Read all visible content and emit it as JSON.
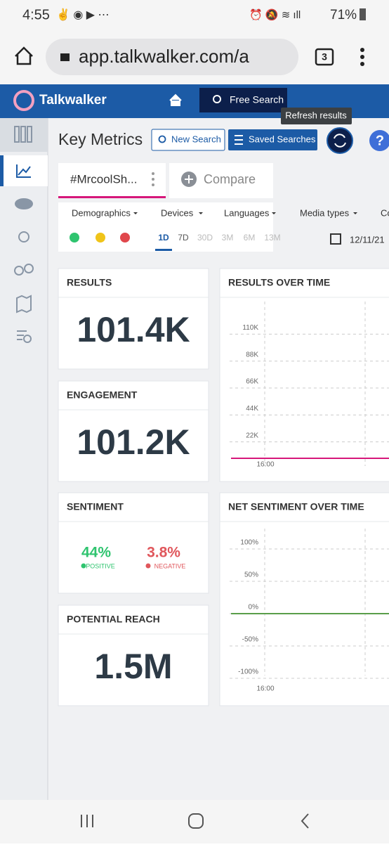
{
  "status_bar": {
    "time": "4:55",
    "battery": "71%"
  },
  "browser": {
    "url": "app.talkwalker.com/a",
    "tab_count": "3"
  },
  "header": {
    "brand": "Talkwalker",
    "free_search": "Free Search",
    "tooltip": "Refresh results"
  },
  "toolbar": {
    "title": "Key Metrics",
    "new_search": "New Search",
    "saved_searches": "Saved Searches"
  },
  "tabs": {
    "active": "#MrcoolSh...",
    "compare": "Compare"
  },
  "filters": [
    "Demographics",
    "Devices",
    "Languages",
    "Media types",
    "Co"
  ],
  "periods": [
    "1D",
    "7D",
    "30D",
    "3M",
    "6M",
    "13M"
  ],
  "date": "12/11/21",
  "cards": [
    {
      "title": "RESULTS",
      "value": "101.4K"
    },
    {
      "title": "ENGAGEMENT",
      "value": "101.2K"
    },
    {
      "title": "POTENTIAL REACH",
      "value": "1.5M"
    }
  ],
  "sentiment": {
    "title": "SENTIMENT",
    "positive": "44%",
    "positive_label": "POSITIVE",
    "negative": "3.8%",
    "negative_label": "NEGATIVE"
  },
  "results_chart": {
    "title": "RESULTS OVER TIME",
    "ylim": [
      0,
      120000
    ],
    "yticks": [
      {
        "value": 22000,
        "label": "22K"
      },
      {
        "value": 44000,
        "label": "44K"
      },
      {
        "value": 66000,
        "label": "66K"
      },
      {
        "value": 88000,
        "label": "88K"
      },
      {
        "value": 110000,
        "label": "110K"
      }
    ],
    "x_label": "16:00"
  },
  "sentiment_chart": {
    "title": "NET SENTIMENT OVER TIME",
    "ylim": [
      -100,
      100
    ],
    "yticks": [
      {
        "value": -100,
        "label": "-100%"
      },
      {
        "value": -50,
        "label": "-50%"
      },
      {
        "value": 0,
        "label": "0%"
      },
      {
        "value": 50,
        "label": "50%"
      },
      {
        "value": 100,
        "label": "100%"
      }
    ],
    "x_label": "16:00"
  }
}
